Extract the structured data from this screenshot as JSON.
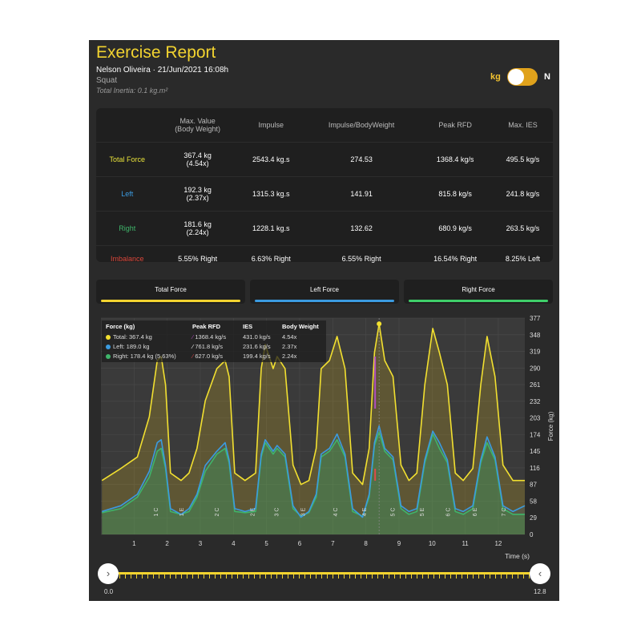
{
  "header": {
    "title": "Exercise Report",
    "athlete_date": "Nelson Oliveira · 21/Jun/2021 16:08h",
    "exercise": "Squat",
    "inertia": "Total Inertia: 0.1 kg.m²",
    "unit_left": "kg",
    "unit_right": "N",
    "unit_toggle_on": true
  },
  "table": {
    "headers": [
      "",
      "Max. Value\n(Body Weight)",
      "Impulse",
      "Impulse/BodyWeight",
      "Peak RFD",
      "Max. IES"
    ],
    "rows": [
      {
        "label": "Total Force",
        "color": "#e8e23a",
        "cells": [
          "367.4 kg\n(4.54x)",
          "2543.4 kg.s",
          "274.53",
          "1368.4 kg/s",
          "495.5 kg/s"
        ]
      },
      {
        "label": "Left",
        "color": "#3b9be0",
        "cells": [
          "192.3 kg\n(2.37x)",
          "1315.3 kg.s",
          "141.91",
          "815.8 kg/s",
          "241.8 kg/s"
        ]
      },
      {
        "label": "Right",
        "color": "#3fb56a",
        "cells": [
          "181.6 kg\n(2.24x)",
          "1228.1 kg.s",
          "132.62",
          "680.9 kg/s",
          "263.5 kg/s"
        ]
      },
      {
        "label": "Imbalance",
        "color": "#d9463a",
        "cells": [
          "5.55% Right",
          "6.63% Right",
          "6.55% Right",
          "16.54% Right",
          "8.25% Left"
        ]
      }
    ]
  },
  "tabs": [
    {
      "label": "Total Force",
      "color": "#f2d330"
    },
    {
      "label": "Left Force",
      "color": "#3b9be0"
    },
    {
      "label": "Right Force",
      "color": "#3fcf6a"
    }
  ],
  "legend": {
    "headers": [
      "Force (kg)",
      "Peak RFD",
      "IES",
      "Body Weight"
    ],
    "rows": [
      {
        "force": "Total: 367.4 kg",
        "rfd": "1368.4 kg/s",
        "ies": "431.0 kg/s",
        "bw": "4.54x",
        "color": "#f2e030",
        "rfd_color": "#b04fc0"
      },
      {
        "force": "Left: 189.0 kg",
        "rfd": "761.8 kg/s",
        "ies": "231.6 kg/s",
        "bw": "2.37x",
        "color": "#3b9be0",
        "rfd_color": "#ffffff"
      },
      {
        "force": "Right: 178.4 kg (5.63%)",
        "rfd": "627.0 kg/s",
        "ies": "199.4 kg/s",
        "bw": "2.24x",
        "color": "#3fb56a",
        "rfd_color": "#e04a4a"
      }
    ]
  },
  "chart_data": {
    "type": "line",
    "xlabel": "Time (s)",
    "ylabel": "Force (kg)",
    "xlim": [
      0,
      12.8
    ],
    "ylim": [
      0,
      377
    ],
    "x_ticks": [
      1,
      2,
      3,
      4,
      5,
      6,
      7,
      8,
      9,
      10,
      11,
      12
    ],
    "y_ticks": [
      0,
      29,
      58,
      87,
      116,
      145,
      174,
      203,
      232,
      261,
      290,
      319,
      348,
      377
    ],
    "x": [
      0.03,
      0.6,
      1.1,
      1.46,
      1.7,
      1.82,
      1.95,
      2.1,
      2.42,
      2.66,
      2.9,
      3.15,
      3.5,
      3.75,
      3.87,
      4.04,
      4.35,
      4.67,
      4.84,
      4.96,
      5.2,
      5.32,
      5.56,
      5.8,
      6.04,
      6.28,
      6.5,
      6.65,
      6.9,
      7.13,
      7.37,
      7.6,
      7.9,
      8.1,
      8.26,
      8.4,
      8.57,
      8.82,
      9.06,
      9.3,
      9.54,
      9.78,
      10.02,
      10.22,
      10.46,
      10.7,
      10.94,
      11.23,
      11.47,
      11.66,
      11.9,
      12.14,
      12.44,
      12.8
    ],
    "series": [
      {
        "name": "Total",
        "color": "#f2e030",
        "values": [
          94,
          115,
          135,
          205,
          303,
          310,
          261,
          107,
          94,
          107,
          150,
          233,
          289,
          303,
          275,
          107,
          94,
          107,
          289,
          331,
          289,
          310,
          289,
          121,
          87,
          94,
          150,
          289,
          303,
          345,
          289,
          107,
          87,
          150,
          317,
          367,
          303,
          275,
          121,
          94,
          107,
          261,
          359,
          317,
          261,
          107,
          94,
          115,
          261,
          345,
          275,
          121,
          94,
          94
        ]
      },
      {
        "name": "Left",
        "color": "#3b9be0",
        "values": [
          40,
          50,
          70,
          110,
          160,
          165,
          120,
          45,
          35,
          45,
          70,
          120,
          145,
          160,
          130,
          45,
          40,
          45,
          140,
          165,
          145,
          155,
          140,
          50,
          30,
          40,
          70,
          140,
          150,
          175,
          140,
          45,
          30,
          70,
          160,
          189,
          150,
          135,
          50,
          40,
          45,
          130,
          180,
          160,
          130,
          45,
          40,
          50,
          130,
          170,
          135,
          50,
          40,
          50
        ]
      },
      {
        "name": "Right",
        "color": "#3fb56a",
        "values": [
          38,
          45,
          65,
          100,
          145,
          150,
          115,
          40,
          35,
          40,
          65,
          110,
          140,
          150,
          125,
          40,
          38,
          40,
          135,
          160,
          140,
          150,
          135,
          45,
          32,
          38,
          65,
          135,
          145,
          165,
          135,
          40,
          32,
          65,
          155,
          178,
          145,
          130,
          45,
          35,
          40,
          125,
          175,
          150,
          125,
          40,
          35,
          45,
          125,
          160,
          130,
          45,
          35,
          35
        ]
      }
    ],
    "rep_labels": [
      {
        "t": 1.65,
        "label": "1 C"
      },
      {
        "t": 2.42,
        "label": "1 E"
      },
      {
        "t": 3.49,
        "label": "2 C"
      },
      {
        "t": 4.56,
        "label": "2 E"
      },
      {
        "t": 5.29,
        "label": "3 C"
      },
      {
        "t": 6.09,
        "label": "3 E"
      },
      {
        "t": 7.06,
        "label": "4 C"
      },
      {
        "t": 7.94,
        "label": "4 E"
      },
      {
        "t": 8.79,
        "label": "5 C"
      },
      {
        "t": 9.68,
        "label": "5 E"
      },
      {
        "t": 10.47,
        "label": "6 C"
      },
      {
        "t": 11.27,
        "label": "6 E"
      },
      {
        "t": 12.15,
        "label": "7 C"
      }
    ],
    "peak_marker_t": 8.4,
    "grid": true
  },
  "slider": {
    "min_label": "0.0",
    "max_label": "12.8",
    "range": [
      0.0,
      12.8
    ],
    "left_icon": "chevron-right-icon",
    "right_icon": "chevron-left-icon"
  }
}
